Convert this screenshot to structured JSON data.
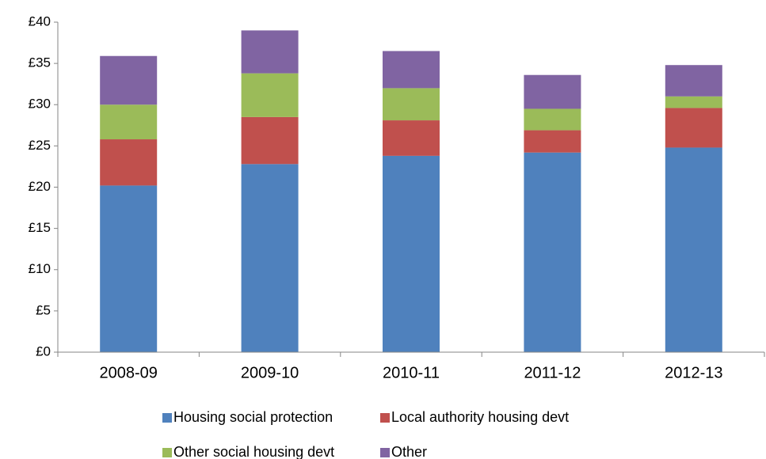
{
  "chart_data": {
    "type": "stacked-bar",
    "categories": [
      "2008-09",
      "2009-10",
      "2010-11",
      "2011-12",
      "2012-13"
    ],
    "series": [
      {
        "name": "Housing social protection",
        "color": "#4f81bd",
        "values": [
          20.2,
          22.8,
          23.8,
          24.2,
          24.8
        ]
      },
      {
        "name": "Local authority housing devt",
        "color": "#c0504d",
        "values": [
          5.6,
          5.7,
          4.3,
          2.7,
          4.8
        ]
      },
      {
        "name": "Other social housing devt",
        "color": "#9bbb59",
        "values": [
          4.2,
          5.3,
          3.9,
          2.6,
          1.4
        ]
      },
      {
        "name": "Other",
        "color": "#8064a2",
        "values": [
          5.9,
          5.2,
          4.5,
          4.1,
          3.8
        ]
      }
    ],
    "ylim": [
      0,
      40
    ],
    "yticks": [
      {
        "value": 0,
        "label": "£0"
      },
      {
        "value": 5,
        "label": "£5"
      },
      {
        "value": 10,
        "label": "£10"
      },
      {
        "value": 15,
        "label": "£15"
      },
      {
        "value": 20,
        "label": "£20"
      },
      {
        "value": 25,
        "label": "£25"
      },
      {
        "value": 30,
        "label": "£30"
      },
      {
        "value": 35,
        "label": "£35"
      },
      {
        "value": 40,
        "label": "£40"
      }
    ],
    "grid": false
  }
}
